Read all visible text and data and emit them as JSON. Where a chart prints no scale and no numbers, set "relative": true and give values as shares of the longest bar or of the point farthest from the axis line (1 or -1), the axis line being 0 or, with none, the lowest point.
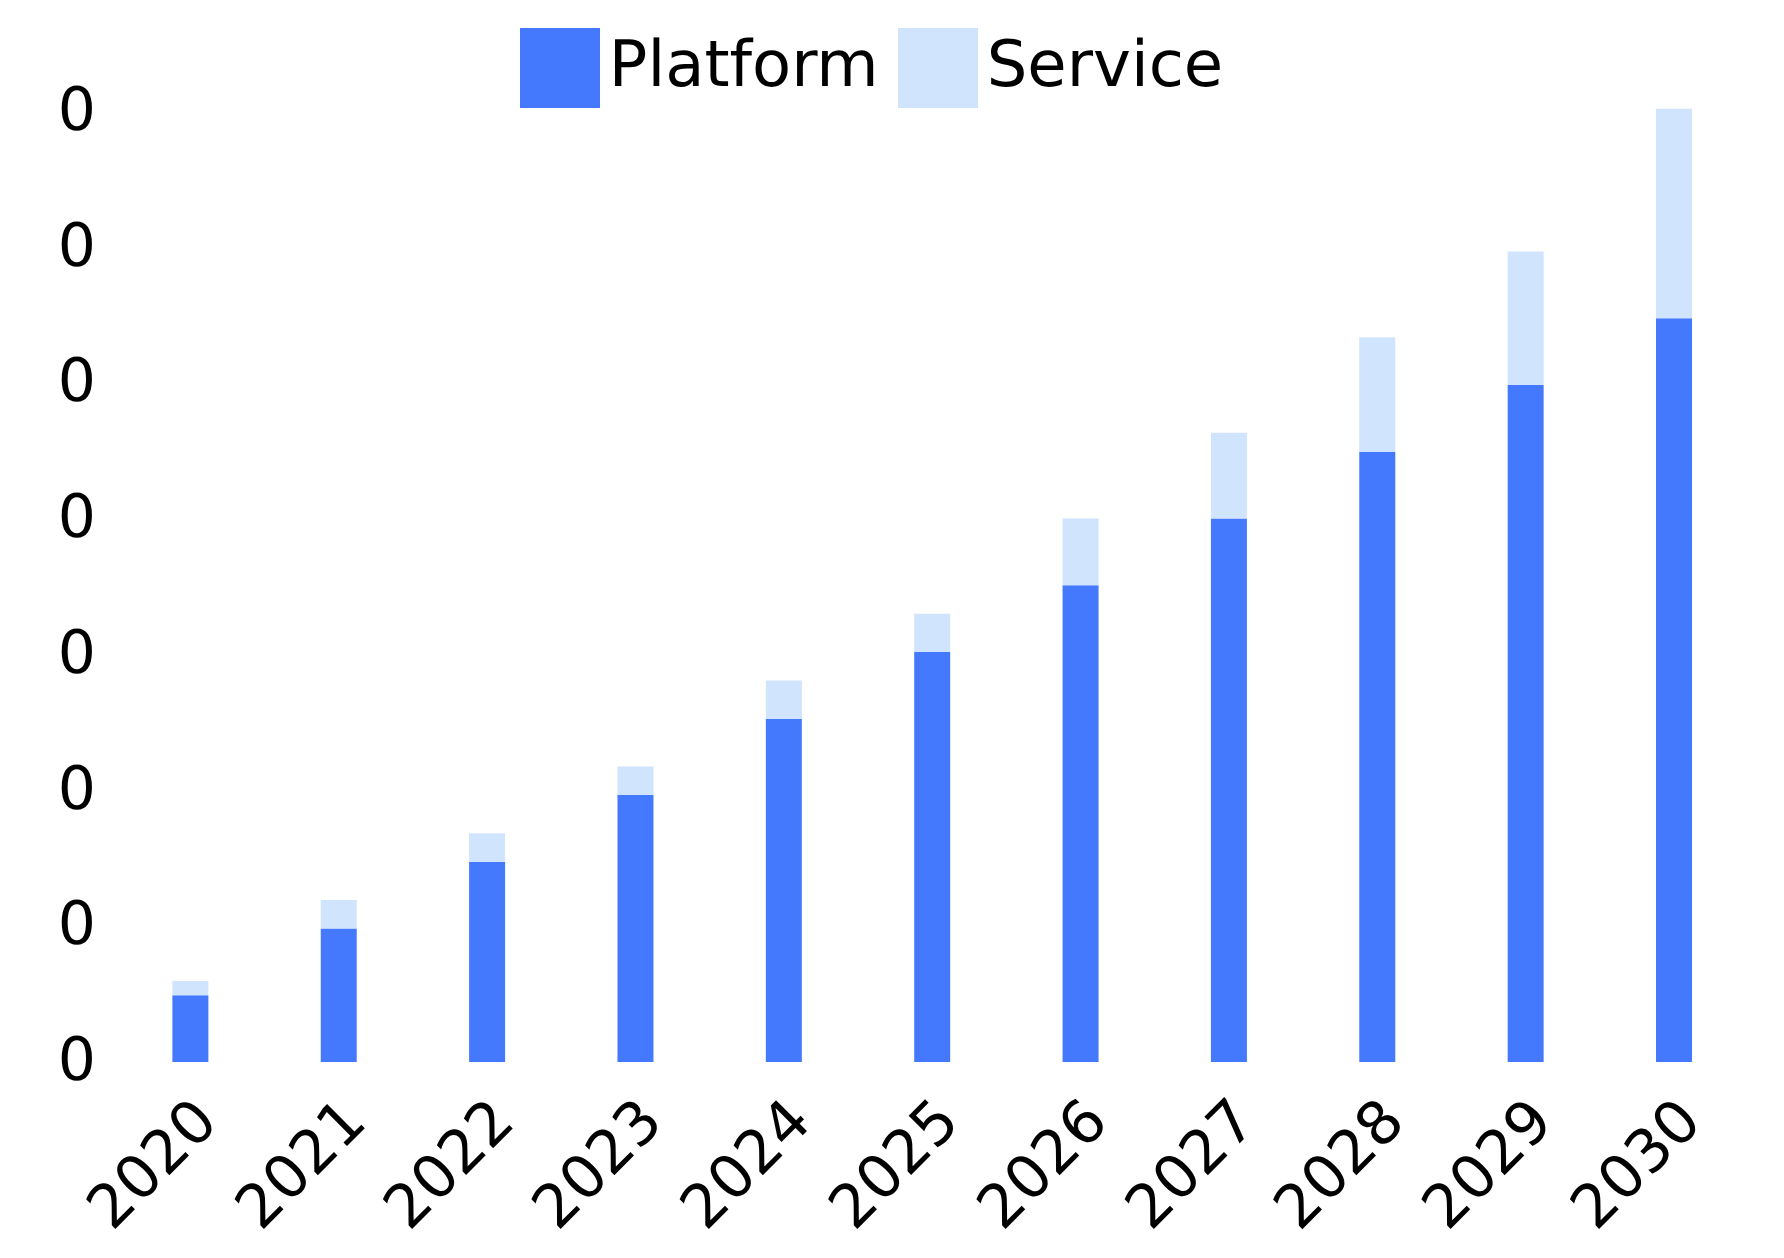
{
  "chart_data": {
    "type": "bar",
    "stacked": true,
    "relative": true,
    "categories": [
      "2020",
      "2021",
      "2022",
      "2023",
      "2024",
      "2025",
      "2026",
      "2027",
      "2028",
      "2029",
      "2030"
    ],
    "series": [
      {
        "name": "Platform",
        "color": "#4479fe",
        "values": [
          0.07,
          0.14,
          0.21,
          0.28,
          0.36,
          0.43,
          0.5,
          0.57,
          0.64,
          0.71,
          0.78
        ]
      },
      {
        "name": "Service",
        "color": "#d0e4fd",
        "values": [
          0.015,
          0.03,
          0.03,
          0.03,
          0.04,
          0.04,
          0.07,
          0.09,
          0.12,
          0.14,
          0.22
        ]
      }
    ],
    "annotations": [
      "0",
      "0",
      "0",
      "0",
      "0",
      "0",
      "0",
      "0"
    ],
    "grid": false,
    "legend": "top"
  }
}
